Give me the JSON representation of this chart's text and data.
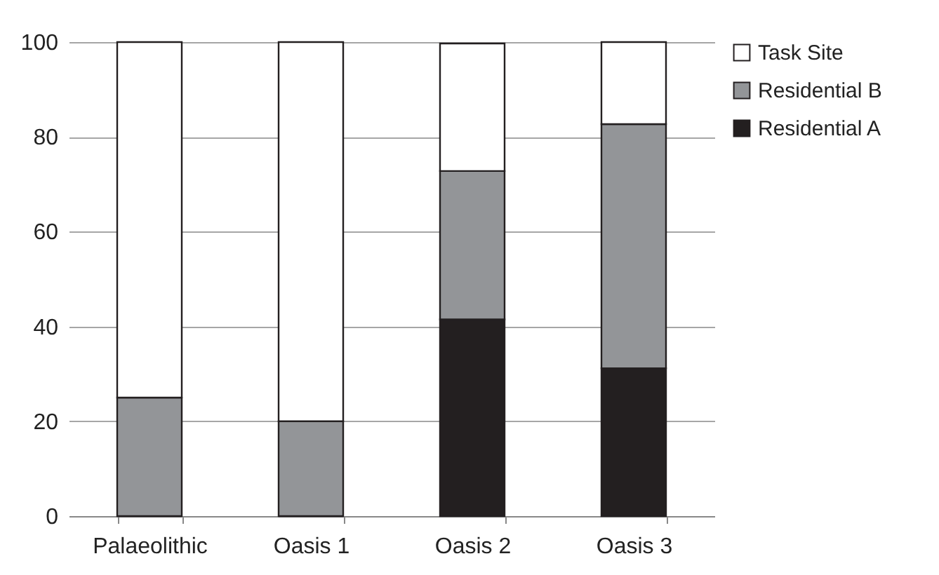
{
  "chart_data": {
    "type": "bar",
    "stacked": true,
    "categories": [
      "Palaeolithic",
      "Oasis 1",
      "Oasis 2",
      "Oasis 3"
    ],
    "series": [
      {
        "name": "Residential A",
        "color": "#231f20",
        "values": [
          0,
          0,
          41.5,
          31.2
        ]
      },
      {
        "name": "Residential B",
        "color": "#939598",
        "values": [
          25,
          20,
          31.3,
          51.5
        ]
      },
      {
        "name": "Task Site",
        "color": "#ffffff",
        "values": [
          75,
          80,
          26.9,
          17.3
        ]
      }
    ],
    "ylim": [
      0,
      100
    ],
    "yticks": [
      0,
      20,
      40,
      60,
      80,
      100
    ],
    "grid": "y",
    "legend": "right"
  }
}
